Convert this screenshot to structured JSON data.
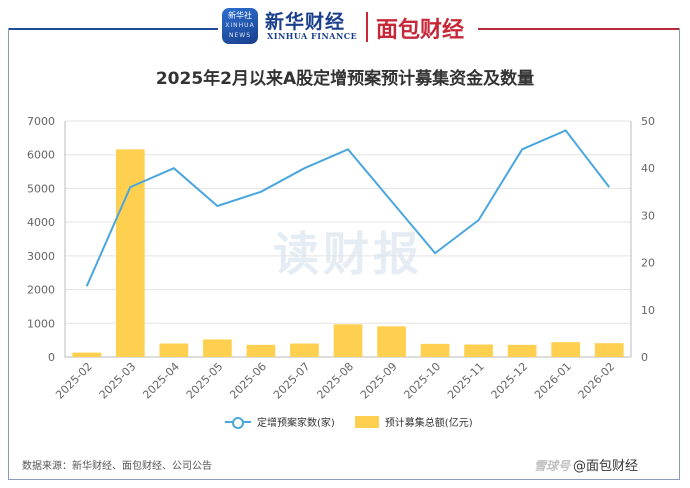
{
  "header": {
    "xinhua_badge": "新华社",
    "xinhua_badge_sub": "XINHUA NEWS",
    "brand_primary": "新华财经",
    "brand_primary_sub": "XINHUA FINANCE",
    "brand_secondary": "面包财经"
  },
  "watermark": "读财报",
  "footer": {
    "source": "数据来源：新华财经、面包财经、公司公告",
    "credit_logo": "雪球号",
    "credit_text": "@面包财经"
  },
  "colors": {
    "bar": "#ffd04f",
    "line": "#4aa6dd",
    "frame_left": "#1f4e96",
    "frame_right": "#b7283a"
  },
  "chart_data": {
    "type": "bar+line",
    "title": "2025年2月以来A股定增预案预计募集资金及数量",
    "categories": [
      "2025-02",
      "2025-03",
      "2025-04",
      "2025-05",
      "2025-06",
      "2025-07",
      "2025-08",
      "2025-09",
      "2025-10",
      "2025-11",
      "2025-12",
      "2026-01",
      "2026-02"
    ],
    "series": [
      {
        "name": "定增预案家数(家)",
        "type": "line",
        "axis": "right",
        "values": [
          15,
          36,
          40,
          32,
          35,
          40,
          44,
          33,
          22,
          29,
          44,
          48,
          36
        ]
      },
      {
        "name": "预计募集总额(亿元)",
        "type": "bar",
        "axis": "left",
        "values": [
          130,
          6160,
          400,
          520,
          360,
          400,
          970,
          910,
          390,
          370,
          360,
          440,
          410
        ]
      }
    ],
    "y_left": {
      "min": 0,
      "max": 7000,
      "ticks": [
        0,
        1000,
        2000,
        3000,
        4000,
        5000,
        6000,
        7000
      ]
    },
    "y_right": {
      "min": 0,
      "max": 50,
      "ticks": [
        0,
        10,
        20,
        30,
        40,
        50
      ]
    },
    "grid": true,
    "legend_position": "bottom"
  }
}
